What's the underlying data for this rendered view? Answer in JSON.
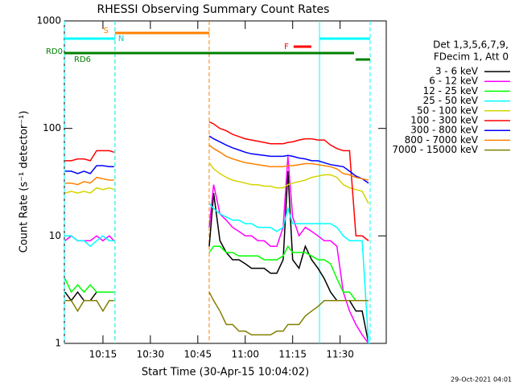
{
  "chart_data": {
    "type": "line",
    "title": "RHESSI Observing Summary Count Rates",
    "x_label": "Start Time (30-Apr-15 10:04:02)",
    "y_label": "Count Rate (s⁻¹ detector⁻¹)",
    "legend_header": [
      "Det 1,3,5,6,7,9,",
      "FDecim 1, Att 0"
    ],
    "footer": "29-Oct-2021 04:01",
    "log_y": true,
    "xlim": [
      2.8,
      104.6
    ],
    "xticks": [
      {
        "value": 15,
        "label": "10:15"
      },
      {
        "value": 30,
        "label": "10:30"
      },
      {
        "value": 45,
        "label": "10:45"
      },
      {
        "value": 60,
        "label": "11:00"
      },
      {
        "value": 75,
        "label": "11:15"
      },
      {
        "value": 90,
        "label": "11:30"
      }
    ],
    "ylim": [
      1,
      1000
    ],
    "yticks": [
      1,
      10,
      100,
      1000
    ],
    "x": [
      3,
      5,
      7,
      9,
      11,
      13,
      15,
      17,
      18.5,
      30,
      48.6,
      50,
      52,
      54,
      56,
      58,
      60,
      62,
      64,
      66,
      68,
      70,
      72,
      73.5,
      75,
      77,
      79,
      81,
      83,
      85,
      87,
      89,
      91,
      93,
      95,
      97,
      99
    ],
    "series": [
      {
        "name": "3 - 6 keV",
        "color": "#000000",
        "values": [
          3,
          2.5,
          3,
          2.5,
          2.5,
          3,
          3,
          3,
          3,
          null,
          8,
          25,
          9,
          7,
          6,
          6,
          5.5,
          5,
          5,
          5,
          4.5,
          4.5,
          6,
          40,
          6,
          5,
          8,
          6,
          5,
          4,
          3,
          2.5,
          2.5,
          2.5,
          2,
          2,
          1
        ]
      },
      {
        "name": "6 - 12 keV",
        "color": "#ff00ff",
        "values": [
          9,
          10,
          9,
          9,
          9,
          10,
          9,
          10,
          9,
          null,
          12,
          30,
          16,
          14,
          12,
          11,
          10,
          10,
          9,
          9,
          8,
          8,
          12,
          55,
          15,
          10,
          12,
          11,
          10,
          9,
          9,
          8,
          3,
          2,
          1.5,
          1.2,
          1
        ]
      },
      {
        "name": "12 - 25 keV",
        "color": "#00ff00",
        "values": [
          4,
          3,
          3.5,
          3,
          3.5,
          3,
          3,
          3,
          3,
          null,
          7,
          8,
          8,
          7,
          7,
          6.5,
          6.5,
          6.5,
          6.5,
          6,
          6,
          6,
          6.5,
          8,
          7,
          7,
          7,
          6.5,
          6,
          6,
          5.5,
          4,
          3,
          3,
          2.5,
          2.5,
          2.5
        ]
      },
      {
        "name": "25 - 50 keV",
        "color": "#00ffff",
        "values": [
          10,
          10,
          9,
          9,
          8,
          9,
          10,
          9,
          9,
          null,
          20,
          18,
          16,
          15,
          14,
          14,
          13,
          13,
          12,
          12,
          12,
          11,
          12,
          18,
          13,
          13,
          13,
          13,
          13,
          13,
          13,
          12,
          10,
          9,
          9,
          9,
          1
        ]
      },
      {
        "name": "50 - 100 keV",
        "color": "#d4d400",
        "values": [
          25,
          26,
          25,
          26,
          25,
          28,
          27,
          28,
          27,
          null,
          48,
          42,
          38,
          35,
          33,
          32,
          31,
          30,
          30,
          29,
          29,
          28,
          28,
          30,
          31,
          32,
          33,
          35,
          36,
          37,
          37,
          35,
          30,
          28,
          27,
          26,
          20
        ]
      },
      {
        "name": "100 - 300 keV",
        "color": "#ff0000",
        "values": [
          50,
          50,
          52,
          52,
          50,
          62,
          62,
          62,
          60,
          null,
          115,
          110,
          100,
          95,
          88,
          84,
          80,
          78,
          76,
          74,
          72,
          72,
          72,
          74,
          75,
          78,
          80,
          80,
          78,
          78,
          70,
          65,
          62,
          62,
          10,
          10,
          9
        ]
      },
      {
        "name": "300 - 800 keV",
        "color": "#0000ff",
        "values": [
          40,
          40,
          38,
          40,
          38,
          45,
          45,
          44,
          44,
          null,
          85,
          80,
          75,
          70,
          66,
          63,
          60,
          58,
          57,
          56,
          55,
          55,
          55,
          56,
          55,
          53,
          52,
          50,
          50,
          48,
          46,
          45,
          44,
          40,
          36,
          34,
          31
        ]
      },
      {
        "name": "800 - 7000 keV",
        "color": "#ff8000",
        "values": [
          31,
          31,
          30,
          32,
          31,
          35,
          34,
          33,
          33,
          null,
          70,
          65,
          60,
          55,
          52,
          50,
          48,
          47,
          46,
          45,
          44,
          44,
          44,
          45,
          45,
          46,
          47,
          47,
          46,
          45,
          44,
          42,
          38,
          37,
          35,
          34,
          33
        ]
      },
      {
        "name": "7000 - 15000 keV",
        "color": "#808000",
        "values": [
          2.5,
          2.5,
          2,
          2.5,
          2.5,
          2.5,
          2,
          2.5,
          2.5,
          null,
          3,
          2.5,
          2,
          1.5,
          1.5,
          1.3,
          1.3,
          1.2,
          1.2,
          1.2,
          1.2,
          1.3,
          1.3,
          1.5,
          1.5,
          1.5,
          1.8,
          2,
          2.2,
          2.5,
          2.5,
          2.5,
          2.5,
          2.5,
          2.5,
          2.5,
          2.5
        ]
      }
    ],
    "flags": [
      {
        "label": "S",
        "color": "#ff8000",
        "segments": [
          [
            18.8,
            48.6
          ]
        ],
        "vlines": true
      },
      {
        "label": "N",
        "color": "#00ffff",
        "segments": [
          [
            2.8,
            18.8
          ],
          [
            83.5,
            99.5
          ]
        ],
        "vlines": true
      },
      {
        "label": "F",
        "color": "#ff0000",
        "segments": [
          [
            75.3,
            80.9
          ]
        ],
        "vlines": false
      },
      {
        "label": "RD0",
        "color": "#008000",
        "segments": [
          [
            2.8,
            94.4
          ]
        ],
        "vlines": false
      },
      {
        "label": "RD6",
        "color": "#008000",
        "segments": [
          [
            94.9,
            99.5
          ]
        ],
        "vlines": false
      }
    ]
  }
}
